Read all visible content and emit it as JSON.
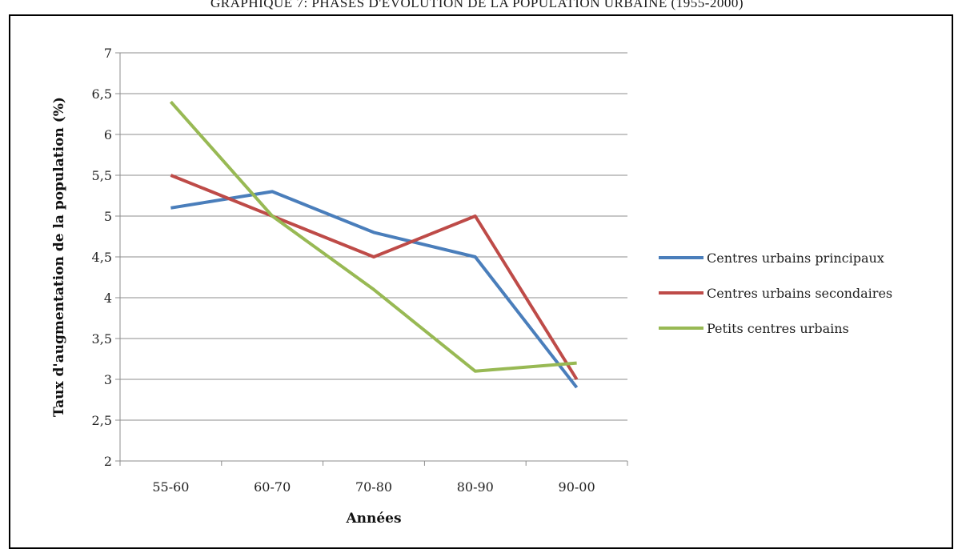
{
  "figure": {
    "caption": "GRAPHIQUE 7: PHASES D'EVOLUTION DE LA POPULATION URBAINE (1955-2000)"
  },
  "chart_data": {
    "type": "line",
    "title": "",
    "xlabel": "Années",
    "ylabel": "Taux d'augmentation de la population (%)",
    "categories": [
      "55-60",
      "60-70",
      "70-80",
      "80-90",
      "90-00"
    ],
    "ylim": [
      2,
      7
    ],
    "yticks": [
      2,
      2.5,
      3,
      3.5,
      4,
      4.5,
      5,
      5.5,
      6,
      6.5,
      7
    ],
    "ytick_labels": [
      "2",
      "2,5",
      "3",
      "3,5",
      "4",
      "4,5",
      "5",
      "5,5",
      "6",
      "6,5",
      "7"
    ],
    "grid": true,
    "legend_position": "right",
    "series": [
      {
        "name": "Centres urbains principaux",
        "color": "#4a7ebb",
        "values": [
          5.1,
          5.3,
          4.8,
          4.5,
          2.9
        ]
      },
      {
        "name": "Centres urbains secondaires",
        "color": "#be4b48",
        "values": [
          5.5,
          5.0,
          4.5,
          5.0,
          3.0
        ]
      },
      {
        "name": "Petits centres urbains",
        "color": "#98b954",
        "values": [
          6.4,
          5.0,
          4.1,
          3.1,
          3.2
        ]
      }
    ]
  }
}
